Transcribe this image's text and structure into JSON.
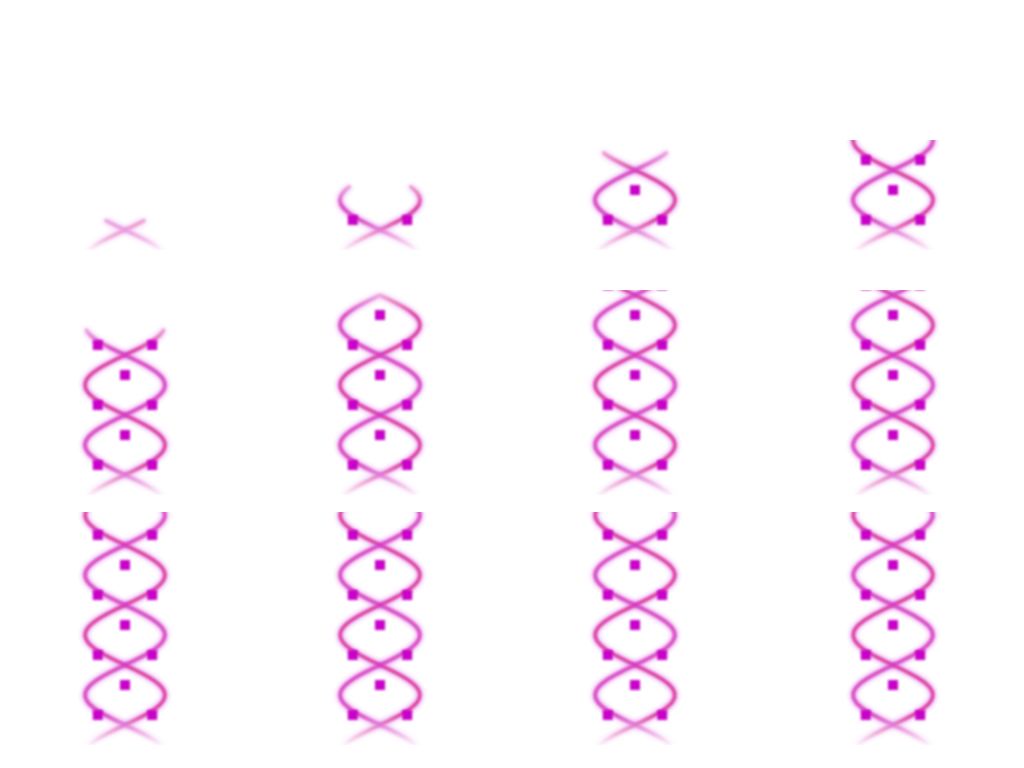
{
  "figure": {
    "description_free": true,
    "grid_rows": 3,
    "grid_cols": 4,
    "colors": {
      "background": "#ffffff",
      "strand": "#d040e0",
      "strand_hot": "#e0204a",
      "node": "#c800c8"
    },
    "panels": [
      {
        "id": 1,
        "stage": 0
      },
      {
        "id": 2,
        "stage": 1
      },
      {
        "id": 3,
        "stage": 2
      },
      {
        "id": 4,
        "stage": 3
      },
      {
        "id": 5,
        "stage": 4
      },
      {
        "id": 6,
        "stage": 5
      },
      {
        "id": 7,
        "stage": 6
      },
      {
        "id": 8,
        "stage": 7
      },
      {
        "id": 9,
        "stage": 8
      },
      {
        "id": 10,
        "stage": 9
      },
      {
        "id": 11,
        "stage": 10
      },
      {
        "id": 12,
        "stage": 11
      }
    ]
  }
}
